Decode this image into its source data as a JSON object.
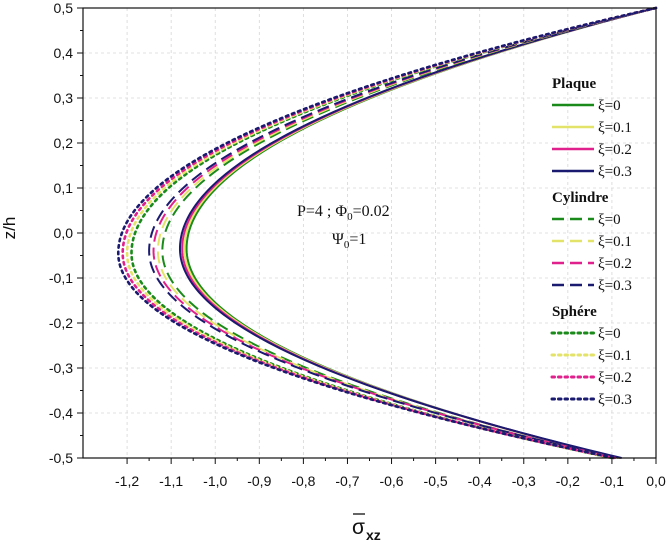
{
  "chart_data": {
    "type": "line",
    "title": "",
    "xlabel": "σxz",
    "xlabel_main": "σ",
    "xlabel_sub": "xz",
    "ylabel": "z/h",
    "xlim": [
      -1.3,
      0.0
    ],
    "ylim": [
      -0.5,
      0.5
    ],
    "grid": true,
    "x_ticks": [
      -1.2,
      -1.1,
      -1.0,
      -0.9,
      -0.8,
      -0.7,
      -0.6,
      -0.5,
      -0.4,
      -0.3,
      -0.2,
      -0.1,
      0.0
    ],
    "x_tick_labels": [
      "-1,2",
      "-1,1",
      "-1,0",
      "-0,9",
      "-0,8",
      "-0,7",
      "-0,6",
      "-0,5",
      "-0,4",
      "-0,3",
      "-0,2",
      "-0,1",
      "0,0"
    ],
    "y_ticks": [
      0.5,
      0.4,
      0.3,
      0.2,
      0.1,
      0.0,
      -0.1,
      -0.2,
      -0.3,
      -0.4,
      -0.5
    ],
    "y_tick_labels": [
      "0,5",
      "0,4",
      "0,3",
      "0,2",
      "0,1",
      "0,0",
      "-0,1",
      "-0,2",
      "-0,3",
      "-0,4",
      "-0,5"
    ],
    "annotation": {
      "line1_prefix": "P=4 ; Φ",
      "line1_sub": "0",
      "line1_suffix": "=0.02",
      "line2_prefix": "Ψ",
      "line2_sub": "0",
      "line2_suffix": "=1"
    },
    "legend_groups": [
      {
        "name": "Plaque",
        "style": "solid"
      },
      {
        "name": "Cylindre",
        "style": "dash"
      },
      {
        "name": "Sphére",
        "style": "dot"
      }
    ],
    "xi_colors": {
      "0": "#1a8a1a",
      "0.1": "#e3e36a",
      "0.2": "#e0208c",
      "0.3": "#1a1a70"
    },
    "series": [
      {
        "group": "Plaque",
        "name": "ξ=0",
        "color": "#1a8a1a",
        "style": "solid",
        "min": -1.065,
        "x_top": 0.0,
        "x_bot": -0.085,
        "z_min": -0.035
      },
      {
        "group": "Plaque",
        "name": "ξ=0.1",
        "color": "#e3e36a",
        "style": "solid",
        "min": -1.07,
        "x_top": 0.0,
        "x_bot": -0.083,
        "z_min": -0.035
      },
      {
        "group": "Plaque",
        "name": "ξ=0.2",
        "color": "#e0208c",
        "style": "solid",
        "min": -1.075,
        "x_top": 0.0,
        "x_bot": -0.081,
        "z_min": -0.035
      },
      {
        "group": "Plaque",
        "name": "ξ=0.3",
        "color": "#1a1a70",
        "style": "solid",
        "min": -1.08,
        "x_top": 0.0,
        "x_bot": -0.078,
        "z_min": -0.035
      },
      {
        "group": "Cylindre",
        "name": "ξ=0",
        "color": "#1a8a1a",
        "style": "dash",
        "min": -1.12,
        "x_top": 0.0,
        "x_bot": -0.095,
        "z_min": -0.04
      },
      {
        "group": "Cylindre",
        "name": "ξ=0.1",
        "color": "#e3e36a",
        "style": "dash",
        "min": -1.13,
        "x_top": 0.0,
        "x_bot": -0.093,
        "z_min": -0.04
      },
      {
        "group": "Cylindre",
        "name": "ξ=0.2",
        "color": "#e0208c",
        "style": "dash",
        "min": -1.14,
        "x_top": 0.0,
        "x_bot": -0.091,
        "z_min": -0.04
      },
      {
        "group": "Cylindre",
        "name": "ξ=0.3",
        "color": "#1a1a70",
        "style": "dash",
        "min": -1.15,
        "x_top": 0.0,
        "x_bot": -0.089,
        "z_min": -0.04
      },
      {
        "group": "Sphére",
        "name": "ξ=0",
        "color": "#1a8a1a",
        "style": "dot",
        "min": -1.19,
        "x_top": 0.0,
        "x_bot": -0.1,
        "z_min": -0.045
      },
      {
        "group": "Sphére",
        "name": "ξ=0.1",
        "color": "#e3e36a",
        "style": "dot",
        "min": -1.2,
        "x_top": 0.0,
        "x_bot": -0.098,
        "z_min": -0.045
      },
      {
        "group": "Sphére",
        "name": "ξ=0.2",
        "color": "#e0208c",
        "style": "dot",
        "min": -1.21,
        "x_top": 0.0,
        "x_bot": -0.096,
        "z_min": -0.045
      },
      {
        "group": "Sphére",
        "name": "ξ=0.3",
        "color": "#1a1a70",
        "style": "dot",
        "min": -1.22,
        "x_top": 0.0,
        "x_bot": -0.094,
        "z_min": -0.045
      }
    ]
  }
}
